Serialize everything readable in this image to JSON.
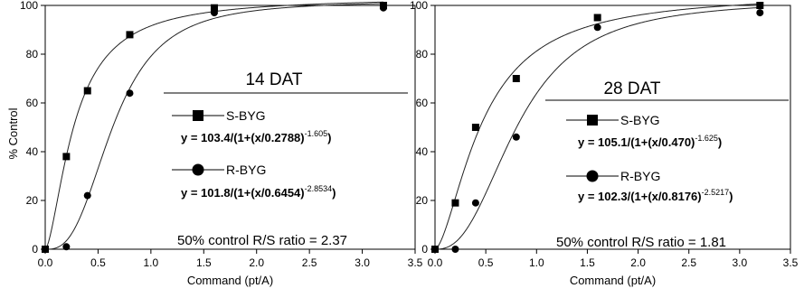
{
  "figure": {
    "ylabel": "% Control"
  },
  "chart_data": [
    {
      "type": "scatter",
      "title": "14 DAT",
      "xlabel": "Command (pt/A)",
      "ylabel": "% Control",
      "xlim": [
        0,
        3.5
      ],
      "ylim": [
        0,
        100
      ],
      "x_ticks": [
        "0.0",
        "0.5",
        "1.0",
        "1.5",
        "2.0",
        "2.5",
        "3.0",
        "3.5"
      ],
      "y_ticks": [
        "0",
        "20",
        "40",
        "60",
        "80",
        "100"
      ],
      "series": [
        {
          "name": "S-BYG",
          "marker": "square",
          "x": [
            0,
            0.2,
            0.4,
            0.8,
            1.6,
            3.2
          ],
          "y": [
            0,
            38,
            65,
            88,
            99,
            100
          ],
          "equation": {
            "prefix": "y = 103.4/(1+(x/0.2788)",
            "exp": "-1.605",
            "suffix": ")"
          },
          "fit": {
            "a": 103.4,
            "x0": 0.2788,
            "b": -1.605
          }
        },
        {
          "name": "R-BYG",
          "marker": "circle",
          "x": [
            0,
            0.2,
            0.4,
            0.8,
            1.6,
            3.2
          ],
          "y": [
            0,
            1,
            22,
            64,
            97,
            99
          ],
          "equation": {
            "prefix": "y = 101.8/(1+(x/0.6454)",
            "exp": "-2.8534",
            "suffix": ")"
          },
          "fit": {
            "a": 101.8,
            "x0": 0.6454,
            "b": -2.8534
          }
        }
      ],
      "annotation": "50% control R/S ratio = 2.37"
    },
    {
      "type": "scatter",
      "title": "28 DAT",
      "xlabel": "Command (pt/A)",
      "ylabel": "",
      "xlim": [
        0,
        3.5
      ],
      "ylim": [
        0,
        100
      ],
      "x_ticks": [
        "0.0",
        "0.5",
        "1.0",
        "1.5",
        "2.0",
        "2.5",
        "3.0",
        "3.5"
      ],
      "y_ticks": [
        "0",
        "20",
        "40",
        "60",
        "80",
        "100"
      ],
      "series": [
        {
          "name": "S-BYG",
          "marker": "square",
          "x": [
            0,
            0.2,
            0.4,
            0.8,
            1.6,
            3.2
          ],
          "y": [
            0,
            19,
            50,
            70,
            95,
            100
          ],
          "equation": {
            "prefix": "y = 105.1/(1+(x/0.470)",
            "exp": "-1.625",
            "suffix": ")"
          },
          "fit": {
            "a": 105.1,
            "x0": 0.47,
            "b": -1.625
          }
        },
        {
          "name": "R-BYG",
          "marker": "circle",
          "x": [
            0,
            0.2,
            0.4,
            0.8,
            1.6,
            3.2
          ],
          "y": [
            0,
            0,
            19,
            46,
            91,
            97
          ],
          "equation": {
            "prefix": "y = 102.3/(1+(x/0.8176)",
            "exp": "-2.5217",
            "suffix": ")"
          },
          "fit": {
            "a": 102.3,
            "x0": 0.8176,
            "b": -2.5217
          }
        }
      ],
      "annotation": "50% control R/S ratio = 1.81"
    }
  ]
}
